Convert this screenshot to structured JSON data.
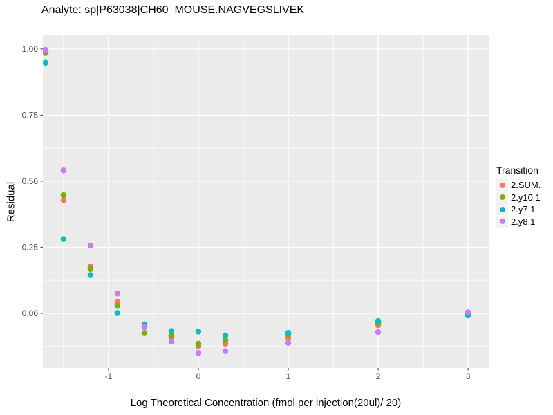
{
  "title": "Analyte: sp|P63038|CH60_MOUSE.NAGVEGSLIVEK",
  "colors": {
    "panel_bg": "#EBEBEB",
    "grid": "#FFFFFF",
    "tick_mark": "#333333",
    "tick_text": "#4D4D4D",
    "legend_key_bg": "#F2F2F2"
  },
  "chart_data": {
    "type": "scatter",
    "title": "Analyte: sp|P63038|CH60_MOUSE.NAGVEGSLIVEK",
    "xlabel": "Log Theoretical Concentration (fmol per injection(20ul)/ 20)",
    "ylabel": "Residual",
    "legend_title": "Transition",
    "legend_position": "right",
    "grid": true,
    "xlim": [
      -1.73,
      3.23
    ],
    "ylim": [
      -0.207,
      1.052
    ],
    "x_ticks": [
      -1,
      0,
      1,
      2,
      3
    ],
    "x_tick_labels": [
      "-1",
      "0",
      "1",
      "2",
      "3"
    ],
    "x_minor": [
      -1.5,
      -0.5,
      0.5,
      1.5,
      2.5
    ],
    "y_ticks": [
      0,
      0.25,
      0.5,
      0.75,
      1.0
    ],
    "y_tick_labels": [
      "0.00",
      "0.25",
      "0.50",
      "0.75",
      "1.00"
    ],
    "y_minor": [
      -0.125,
      0.125,
      0.375,
      0.625,
      0.875
    ],
    "series": [
      {
        "name": "2.SUM.",
        "color": "#F8766D",
        "points": [
          [
            -1.7,
            0.985
          ],
          [
            -1.5,
            0.428
          ],
          [
            -1.2,
            0.178
          ],
          [
            -0.9,
            0.043
          ],
          [
            -0.6,
            -0.049
          ],
          [
            -0.3,
            -0.09
          ],
          [
            0,
            -0.125
          ],
          [
            0.3,
            -0.115
          ],
          [
            1,
            -0.093
          ],
          [
            2,
            -0.045
          ],
          [
            3,
            -0.002
          ]
        ]
      },
      {
        "name": "2.y10.1",
        "color": "#7CAE00",
        "points": [
          [
            -1.7,
            0.99
          ],
          [
            -1.5,
            0.447
          ],
          [
            -1.2,
            0.168
          ],
          [
            -0.9,
            0.028
          ],
          [
            -0.6,
            -0.075
          ],
          [
            -0.3,
            -0.085
          ],
          [
            0,
            -0.115
          ],
          [
            0.3,
            -0.102
          ],
          [
            1,
            -0.08
          ],
          [
            2,
            -0.037
          ],
          [
            3,
            -0.001
          ]
        ]
      },
      {
        "name": "2.y7.1",
        "color": "#00BFC4",
        "points": [
          [
            -1.7,
            0.948
          ],
          [
            -1.5,
            0.281
          ],
          [
            -1.2,
            0.145
          ],
          [
            -0.9,
            0.001
          ],
          [
            -0.6,
            -0.042
          ],
          [
            -0.3,
            -0.067
          ],
          [
            0,
            -0.069
          ],
          [
            0.3,
            -0.084
          ],
          [
            1,
            -0.074
          ],
          [
            2,
            -0.029
          ],
          [
            3,
            -0.008
          ]
        ]
      },
      {
        "name": "2.y8.1",
        "color": "#C77CFF",
        "points": [
          [
            -1.7,
            0.997
          ],
          [
            -1.5,
            0.541
          ],
          [
            -1.2,
            0.256
          ],
          [
            -0.9,
            0.075
          ],
          [
            -0.6,
            -0.053
          ],
          [
            -0.3,
            -0.107
          ],
          [
            0,
            -0.15
          ],
          [
            0.3,
            -0.143
          ],
          [
            1,
            -0.112
          ],
          [
            2,
            -0.071
          ],
          [
            3,
            0.004
          ]
        ]
      }
    ]
  }
}
